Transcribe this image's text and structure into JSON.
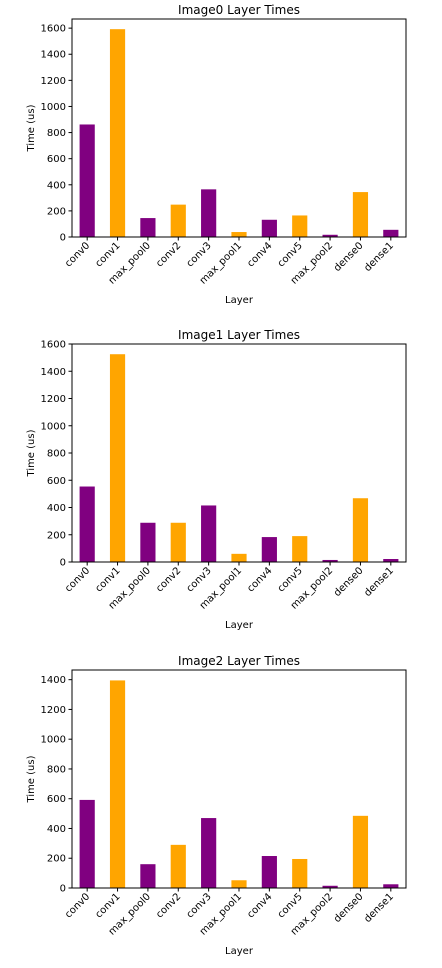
{
  "chart_data": [
    {
      "type": "bar",
      "title": "Image0 Layer Times",
      "xlabel": "Layer",
      "ylabel": "Time (us)",
      "ylim": [
        0,
        1670
      ],
      "yticks": [
        0,
        200,
        400,
        600,
        800,
        1000,
        1200,
        1400,
        1600
      ],
      "grid": false,
      "categories": [
        "conv0",
        "conv1",
        "max_pool0",
        "conv2",
        "conv3",
        "max_pool1",
        "conv4",
        "conv5",
        "max_pool2",
        "dense0",
        "dense1"
      ],
      "values": [
        862,
        1592,
        145,
        248,
        365,
        38,
        132,
        165,
        17,
        344,
        55
      ],
      "colors": [
        "#800080",
        "#FFA500",
        "#800080",
        "#FFA500",
        "#800080",
        "#FFA500",
        "#800080",
        "#FFA500",
        "#800080",
        "#FFA500",
        "#800080"
      ]
    },
    {
      "type": "bar",
      "title": "Image1 Layer Times",
      "xlabel": "Layer",
      "ylabel": "Time (us)",
      "ylim": [
        0,
        1600
      ],
      "yticks": [
        0,
        200,
        400,
        600,
        800,
        1000,
        1200,
        1400,
        1600
      ],
      "grid": false,
      "categories": [
        "conv0",
        "conv1",
        "max_pool0",
        "conv2",
        "conv3",
        "max_pool1",
        "conv4",
        "conv5",
        "max_pool2",
        "dense0",
        "dense1"
      ],
      "values": [
        554,
        1525,
        288,
        288,
        415,
        60,
        183,
        190,
        15,
        468,
        22
      ],
      "colors": [
        "#800080",
        "#FFA500",
        "#800080",
        "#FFA500",
        "#800080",
        "#FFA500",
        "#800080",
        "#FFA500",
        "#800080",
        "#FFA500",
        "#800080"
      ]
    },
    {
      "type": "bar",
      "title": "Image2 Layer Times",
      "xlabel": "Layer",
      "ylabel": "Time (us)",
      "ylim": [
        0,
        1465
      ],
      "yticks": [
        0,
        200,
        400,
        600,
        800,
        1000,
        1200,
        1400
      ],
      "grid": false,
      "categories": [
        "conv0",
        "conv1",
        "max_pool0",
        "conv2",
        "conv3",
        "max_pool1",
        "conv4",
        "conv5",
        "max_pool2",
        "dense0",
        "dense1"
      ],
      "values": [
        592,
        1395,
        160,
        290,
        470,
        52,
        215,
        195,
        15,
        485,
        25
      ],
      "colors": [
        "#800080",
        "#FFA500",
        "#800080",
        "#FFA500",
        "#800080",
        "#FFA500",
        "#800080",
        "#FFA500",
        "#800080",
        "#FFA500",
        "#800080"
      ]
    }
  ]
}
